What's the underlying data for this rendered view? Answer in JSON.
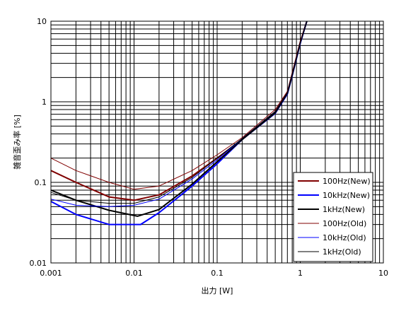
{
  "chart_data": {
    "type": "line",
    "title": "",
    "xlabel": "出力 [W]",
    "ylabel": "雑音歪み率 [%]",
    "xscale": "log",
    "yscale": "log",
    "xlim": [
      0.001,
      10
    ],
    "ylim": [
      0.01,
      10
    ],
    "x_ticks": [
      "0.001",
      "0.01",
      "0.1",
      "1",
      "10"
    ],
    "y_ticks": [
      "0.01",
      "0.1",
      "1",
      "10"
    ],
    "grid": true,
    "legend_position": "bottom-right",
    "series": [
      {
        "name": "100Hz(New)",
        "color": "#800000",
        "width": 2,
        "x": [
          0.001,
          0.002,
          0.005,
          0.01,
          0.02,
          0.05,
          0.1,
          0.2,
          0.5,
          0.7,
          0.8,
          1.0,
          1.2
        ],
        "y": [
          0.14,
          0.1,
          0.066,
          0.06,
          0.07,
          0.12,
          0.2,
          0.34,
          0.75,
          1.3,
          2.2,
          5.5,
          10
        ]
      },
      {
        "name": "10kHz(New)",
        "color": "#0000ff",
        "width": 2,
        "x": [
          0.001,
          0.002,
          0.005,
          0.012,
          0.02,
          0.05,
          0.1,
          0.2,
          0.5,
          0.7,
          0.8,
          1.0,
          1.2
        ],
        "y": [
          0.058,
          0.04,
          0.03,
          0.03,
          0.042,
          0.09,
          0.17,
          0.34,
          0.72,
          1.25,
          2.1,
          5.3,
          10
        ]
      },
      {
        "name": "1kHz(New)",
        "color": "#000000",
        "width": 2,
        "x": [
          0.001,
          0.002,
          0.005,
          0.011,
          0.02,
          0.05,
          0.1,
          0.2,
          0.5,
          0.7,
          0.8,
          1.0,
          1.2
        ],
        "y": [
          0.08,
          0.06,
          0.045,
          0.038,
          0.046,
          0.095,
          0.18,
          0.34,
          0.73,
          1.28,
          2.15,
          5.4,
          10
        ]
      },
      {
        "name": "100Hz(Old)",
        "color": "#800000",
        "width": 1,
        "x": [
          0.001,
          0.002,
          0.005,
          0.01,
          0.02,
          0.05,
          0.1,
          0.2,
          0.5,
          0.7,
          0.8,
          1.0,
          1.2
        ],
        "y": [
          0.2,
          0.14,
          0.1,
          0.082,
          0.09,
          0.14,
          0.22,
          0.36,
          0.8,
          1.35,
          2.3,
          5.6,
          10
        ]
      },
      {
        "name": "10kHz(Old)",
        "color": "#0000ff",
        "width": 1,
        "x": [
          0.001,
          0.002,
          0.005,
          0.01,
          0.02,
          0.05,
          0.1,
          0.2,
          0.5,
          0.7,
          0.8,
          1.0,
          1.2
        ],
        "y": [
          0.062,
          0.052,
          0.05,
          0.052,
          0.062,
          0.11,
          0.19,
          0.35,
          0.76,
          1.3,
          2.2,
          5.4,
          10
        ]
      },
      {
        "name": "1kHz(Old)",
        "color": "#000000",
        "width": 1,
        "x": [
          0.001,
          0.002,
          0.005,
          0.01,
          0.02,
          0.05,
          0.1,
          0.2,
          0.5,
          0.7,
          0.8,
          1.0,
          1.2
        ],
        "y": [
          0.075,
          0.06,
          0.055,
          0.055,
          0.066,
          0.115,
          0.2,
          0.35,
          0.76,
          1.3,
          2.2,
          5.45,
          10
        ]
      }
    ]
  }
}
